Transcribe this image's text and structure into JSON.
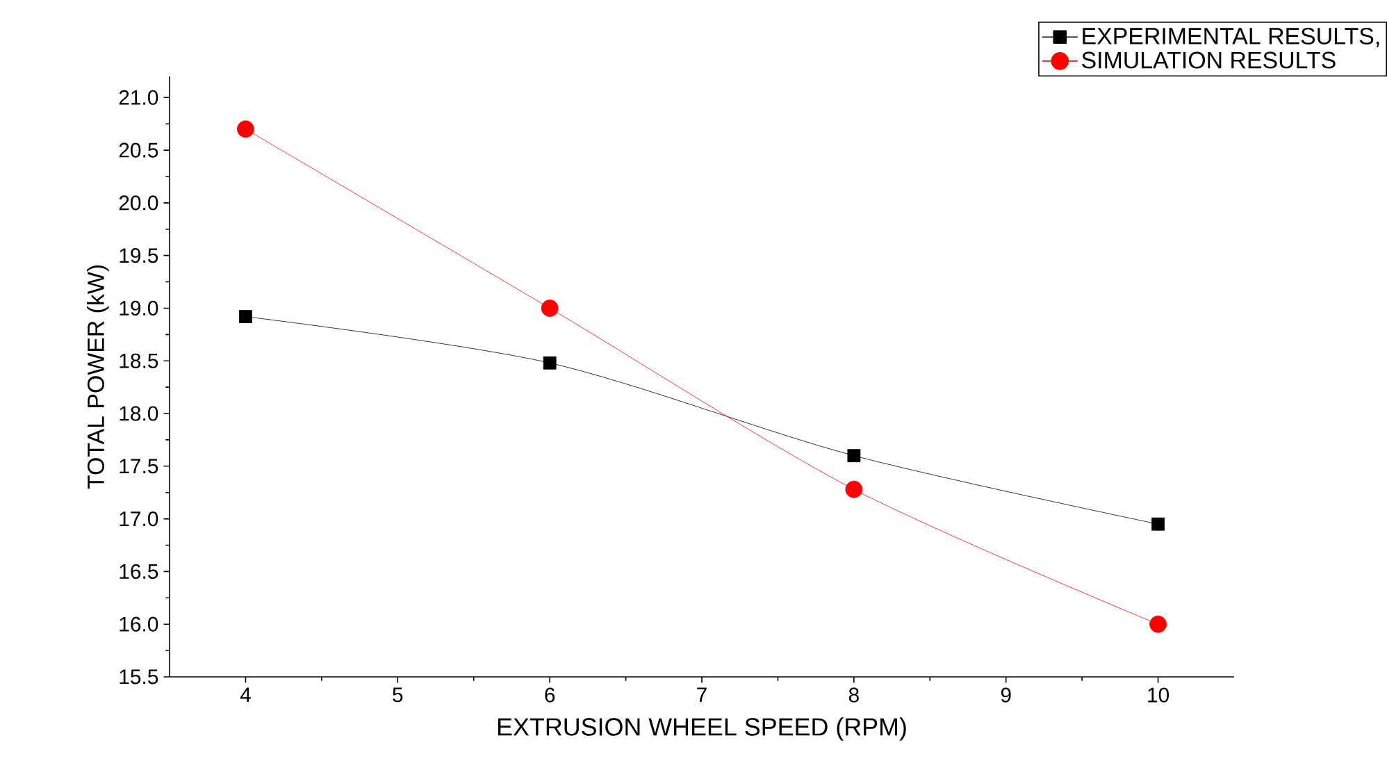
{
  "chart_data": {
    "type": "line",
    "xlabel": "EXTRUSION WHEEL SPEED (RPM)",
    "ylabel": "TOTAL POWER (kW)",
    "x": [
      4,
      6,
      8,
      10
    ],
    "series": [
      {
        "name": "EXPERIMENTAL RESULTS,",
        "color": "#000000",
        "marker": "square",
        "values": [
          18.92,
          18.48,
          17.6,
          16.95
        ]
      },
      {
        "name": "SIMULATION RESULTS",
        "color": "#ff0000",
        "marker": "circle",
        "values": [
          20.7,
          19.0,
          17.28,
          16.0
        ]
      }
    ],
    "xlim": [
      3.5,
      10.5
    ],
    "xticks": [
      4,
      5,
      6,
      7,
      8,
      9,
      10
    ],
    "ylim": [
      15.5,
      21.2
    ],
    "yticks": [
      {
        "value": 15.5,
        "label": "15.5"
      },
      {
        "value": 16,
        "label": "16.0"
      },
      {
        "value": 16.5,
        "label": "16.5"
      },
      {
        "value": 17,
        "label": "17.0"
      },
      {
        "value": 17.5,
        "label": "17.5"
      },
      {
        "value": 18,
        "label": "18.0"
      },
      {
        "value": 18.5,
        "label": "18.5"
      },
      {
        "value": 19,
        "label": "19.0"
      },
      {
        "value": 19.5,
        "label": "19.5"
      },
      {
        "value": 20,
        "label": "20.0"
      },
      {
        "value": 20.5,
        "label": "20.5"
      },
      {
        "value": 21,
        "label": "21.0"
      }
    ],
    "legend": "top right",
    "grid": false,
    "line_style": "solid"
  }
}
